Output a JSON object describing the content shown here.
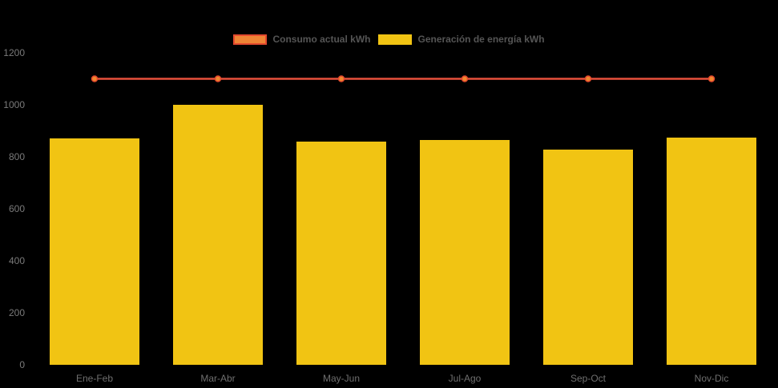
{
  "page": {
    "background": "#000000"
  },
  "legend": {
    "items": [
      {
        "label": "Consumo actual kWh",
        "swatch_fill": "#EE8435",
        "swatch_border": "#E3492E"
      },
      {
        "label": "Generación de energía kWh",
        "swatch_fill": "#F1C413",
        "swatch_border": "#F1C413"
      }
    ]
  },
  "chart_data": {
    "type": "bar",
    "title": "",
    "xlabel": "",
    "ylabel": "",
    "categories": [
      "Ene-Feb",
      "Mar-Abr",
      "May-Jun",
      "Jul-Ago",
      "Sep-Oct",
      "Nov-Dic"
    ],
    "series": [
      {
        "name": "Consumo actual kWh",
        "type": "line",
        "color": "#E8503C",
        "marker_fill": "#F0882F",
        "marker_stroke": "#E3492E",
        "values": [
          1100,
          1100,
          1100,
          1100,
          1100,
          1100
        ]
      },
      {
        "name": "Generación de energía kWh",
        "type": "bar",
        "color": "#F1C413",
        "values": [
          870,
          1000,
          858,
          864,
          828,
          874
        ]
      }
    ],
    "yticks": [
      0,
      200,
      400,
      600,
      800,
      1000,
      1200
    ],
    "ylim": [
      0,
      1200
    ],
    "grid": false,
    "axis_lines": false,
    "legend_position": "top-center",
    "tick_color": "#7a7a7a",
    "xlabel_color": "#6f6f6f"
  }
}
